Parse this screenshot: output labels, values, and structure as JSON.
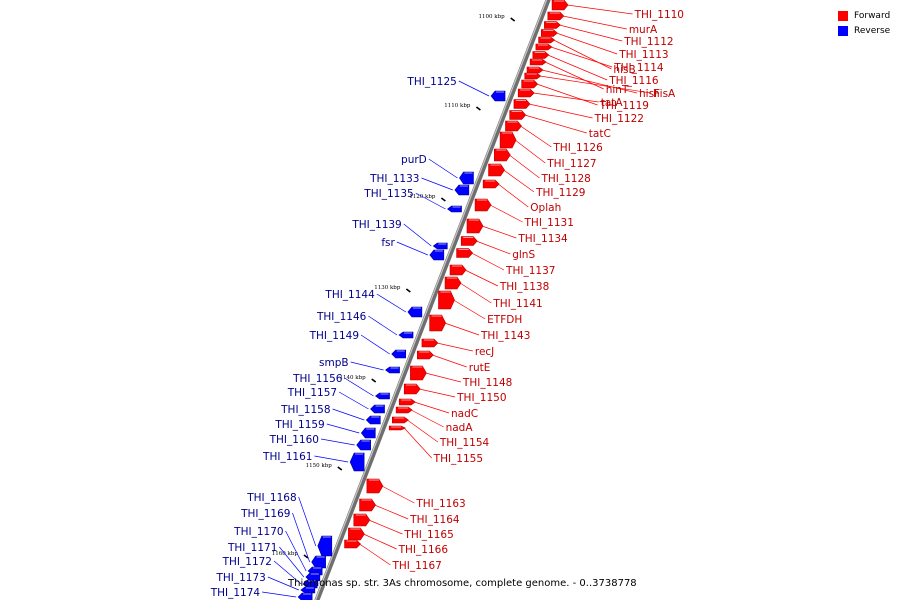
{
  "legend": {
    "forward_label": "Forward",
    "reverse_label": "Reverse",
    "forward_color": "#ff0000",
    "reverse_color": "#0000ff"
  },
  "caption": "Thiomonas sp. str. 3As chromosome, complete genome. - 0..3738778",
  "scale_ticks": [
    "1100 kbp",
    "1110 kbp",
    "1120 kbp",
    "1130 kbp",
    "1140 kbp",
    "1150 kbp",
    "1160 kbp"
  ],
  "forward_genes": [
    "THI_1110",
    "murA",
    "THI_1112",
    "THI_1113",
    "hisB",
    "THI_1114",
    "THI_1116",
    "hinT",
    "hisF",
    "hisA",
    "THI_1119",
    "tatA",
    "THI_1122",
    "tatC",
    "THI_1126",
    "THI_1127",
    "THI_1128",
    "THI_1129",
    "Oplah",
    "THI_1131",
    "THI_1134",
    "glnS",
    "THI_1137",
    "THI_1138",
    "THI_1141",
    "ETFDH",
    "THI_1143",
    "recJ",
    "rutE",
    "THI_1148",
    "THI_1150",
    "nadC",
    "nadA",
    "THI_1154",
    "THI_1155",
    "THI_1163",
    "THI_1164",
    "THI_1165",
    "THI_1166",
    "THI_1167"
  ],
  "reverse_genes": [
    "THI_1125",
    "purD",
    "THI_1133",
    "THI_1135",
    "THI_1139",
    "fsr",
    "THI_1144",
    "THI_1146",
    "THI_1149",
    "smpB",
    "THI_1156",
    "THI_1157",
    "THI_1158",
    "THI_1159",
    "THI_1160",
    "THI_1161",
    "THI_1168",
    "THI_1169",
    "THI_1170",
    "THI_1171",
    "THI_1172",
    "THI_1173",
    "THI_1174"
  ]
}
